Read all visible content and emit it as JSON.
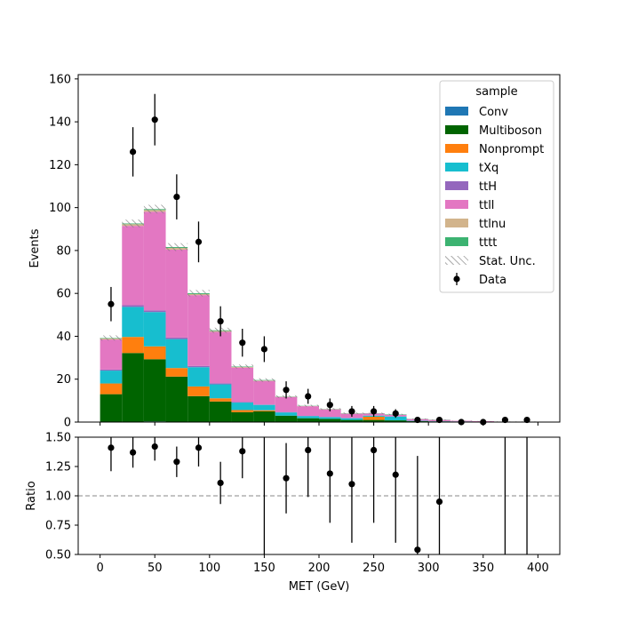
{
  "chart_data": [
    {
      "type": "bar",
      "stacked": true,
      "histogram": true,
      "xlabel": "",
      "ylabel": "Events",
      "xlim": [
        -20,
        420
      ],
      "ylim": [
        0,
        162
      ],
      "yticks": [
        0,
        20,
        40,
        60,
        80,
        100,
        120,
        140,
        160
      ],
      "xticks": [
        0,
        50,
        100,
        150,
        200,
        250,
        300,
        350,
        400
      ],
      "bin_edges": [
        0,
        20,
        40,
        60,
        80,
        100,
        120,
        140,
        160,
        180,
        200,
        220,
        240,
        260,
        280,
        300,
        320,
        340,
        360,
        380,
        400
      ],
      "legend": {
        "title": "sample",
        "placement": "top-right"
      },
      "series": [
        {
          "name": "Conv",
          "color": "#1f77b4",
          "values": [
            0,
            0.2,
            0.3,
            0.2,
            0.1,
            0.1,
            0.1,
            0,
            0,
            0,
            0,
            0,
            0,
            0,
            0,
            0,
            0,
            0,
            0,
            0
          ]
        },
        {
          "name": "Multiboson",
          "color": "#006400",
          "values": [
            13,
            32,
            29,
            21,
            12,
            9.5,
            4.5,
            5,
            3,
            1.8,
            1.5,
            1,
            1,
            0.8,
            0.4,
            0.3,
            0.2,
            0.1,
            0.1,
            0.1
          ]
        },
        {
          "name": "Nonprompt",
          "color": "#ff7f0e",
          "values": [
            5,
            7.5,
            6,
            4,
            4.5,
            1.5,
            1,
            0.5,
            0,
            0,
            0,
            0,
            1.5,
            0,
            0,
            0,
            0,
            0,
            0,
            0
          ]
        },
        {
          "name": "tXq",
          "color": "#17becf",
          "values": [
            6,
            14,
            16,
            13.5,
            9,
            6.5,
            3.5,
            2.5,
            1.5,
            1,
            0.8,
            0.8,
            0.5,
            1.8,
            0.2,
            0.1,
            0.1,
            0.1,
            0,
            0
          ]
        },
        {
          "name": "ttH",
          "color": "#9467bd",
          "values": [
            0.5,
            0.8,
            0.8,
            0.7,
            0.6,
            0.5,
            0.3,
            0.2,
            0.2,
            0.1,
            0.1,
            0.1,
            0,
            0,
            0,
            0,
            0,
            0,
            0,
            0
          ]
        },
        {
          "name": "ttll",
          "color": "#e377c2",
          "values": [
            14,
            37,
            46,
            41,
            33,
            24,
            16,
            11,
            7,
            4.5,
            3.5,
            2,
            1,
            0.8,
            0.8,
            0.6,
            0.3,
            0.2,
            0.1,
            0.1
          ]
        },
        {
          "name": "ttlnu",
          "color": "#d2b48c",
          "values": [
            0.5,
            0.8,
            0.8,
            0.8,
            0.5,
            0.4,
            0.3,
            0.2,
            0.1,
            0.1,
            0.1,
            0.1,
            0,
            0,
            0,
            0,
            0,
            0,
            0,
            0
          ]
        },
        {
          "name": "tttt",
          "color": "#3cb371",
          "values": [
            0.2,
            0.3,
            0.4,
            0.4,
            0.4,
            0.3,
            0.2,
            0.2,
            0.1,
            0.1,
            0.1,
            0.1,
            0.1,
            0.2,
            0.1,
            0.1,
            0,
            0,
            0,
            0
          ]
        }
      ],
      "stat_unc": {
        "name": "Stat. Unc.",
        "values": [
          1.2,
          1.8,
          2.0,
          1.8,
          1.5,
          1.2,
          0.9,
          0.8,
          0.6,
          0.5,
          0.4,
          0.4,
          0.3,
          0.3,
          0.2,
          0.2,
          0.1,
          0.1,
          0.1,
          0.1
        ]
      },
      "data": {
        "name": "Data",
        "x": [
          10,
          30,
          50,
          70,
          90,
          110,
          130,
          150,
          170,
          190,
          210,
          230,
          250,
          270,
          290,
          310,
          330,
          350,
          370,
          390
        ],
        "y": [
          55,
          126,
          141,
          105,
          84,
          47,
          37,
          34,
          15,
          12,
          8,
          5,
          5,
          4,
          1,
          1,
          0,
          0,
          1,
          1
        ],
        "err": [
          8,
          11.5,
          12,
          10.5,
          9.5,
          7,
          6.5,
          6,
          4,
          3.5,
          3,
          2.5,
          2.5,
          2,
          1,
          1,
          0,
          0,
          1,
          1
        ]
      }
    },
    {
      "type": "scatter",
      "xlabel": "MET (GeV)",
      "ylabel": "Ratio",
      "xlim": [
        -20,
        420
      ],
      "ylim": [
        0.5,
        1.5
      ],
      "yticks": [
        "0.50",
        "0.75",
        "1.00",
        "1.25",
        "1.50"
      ],
      "xticks": [
        0,
        50,
        100,
        150,
        200,
        250,
        300,
        350,
        400
      ],
      "reference_line": 1.0,
      "x": [
        10,
        30,
        50,
        70,
        90,
        110,
        130,
        150,
        170,
        190,
        210,
        230,
        250,
        270,
        290,
        310,
        330,
        350,
        370,
        390
      ],
      "y": [
        1.41,
        1.37,
        1.42,
        1.29,
        1.41,
        1.11,
        1.38,
        null,
        1.15,
        1.39,
        1.19,
        1.1,
        1.39,
        1.18,
        0.54,
        0.95,
        null,
        null,
        null,
        null
      ],
      "err": [
        0.2,
        0.13,
        0.12,
        0.13,
        0.16,
        0.18,
        0.23,
        0.25,
        0.3,
        0.4,
        0.42,
        0.5,
        0.62,
        0.58,
        0.8,
        1.0,
        0,
        0,
        1.0,
        1.0
      ],
      "err_only": [
        false,
        false,
        false,
        false,
        false,
        false,
        false,
        true,
        false,
        false,
        false,
        false,
        false,
        false,
        false,
        false,
        false,
        false,
        true,
        true
      ]
    }
  ]
}
